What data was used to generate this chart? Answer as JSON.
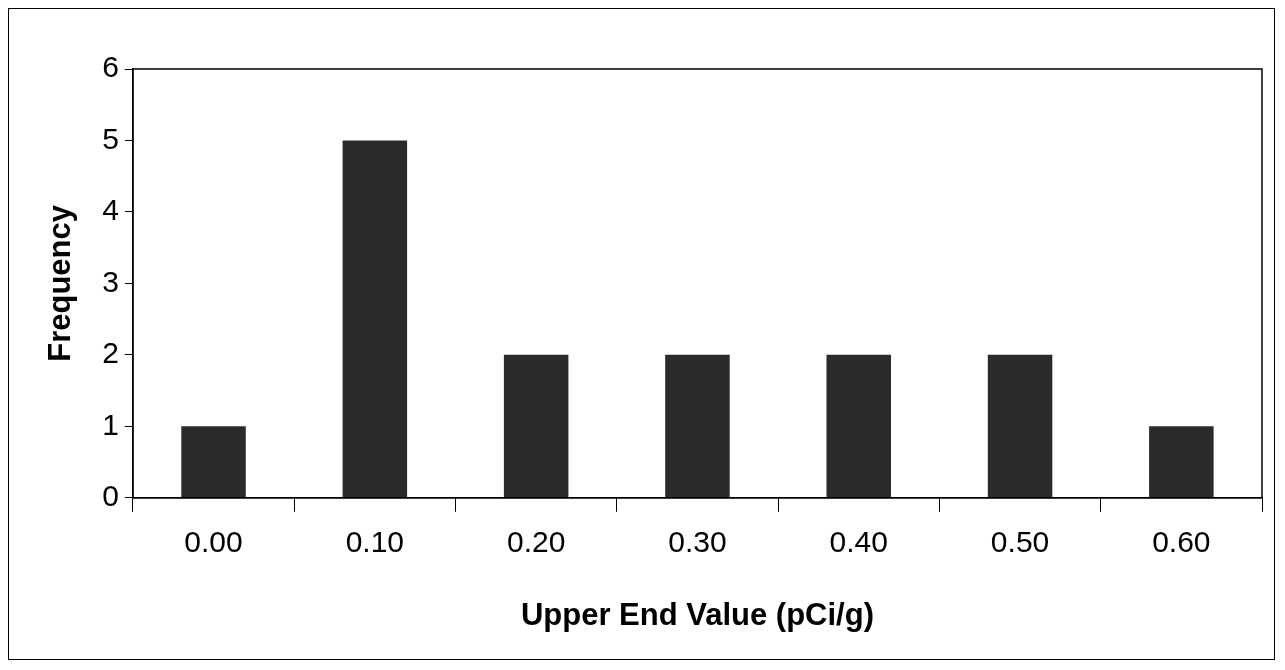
{
  "chart_data": {
    "type": "bar",
    "xlabel": "Upper End Value (pCi/g)",
    "ylabel": "Frequency",
    "categories": [
      "0.00",
      "0.10",
      "0.20",
      "0.30",
      "0.40",
      "0.50",
      "0.60"
    ],
    "values": [
      1,
      5,
      2,
      2,
      2,
      2,
      1
    ],
    "color": "#2b2b2b",
    "ylim": [
      0,
      6
    ],
    "yticks": [
      0,
      1,
      2,
      3,
      4,
      5,
      6
    ],
    "legend": false
  }
}
